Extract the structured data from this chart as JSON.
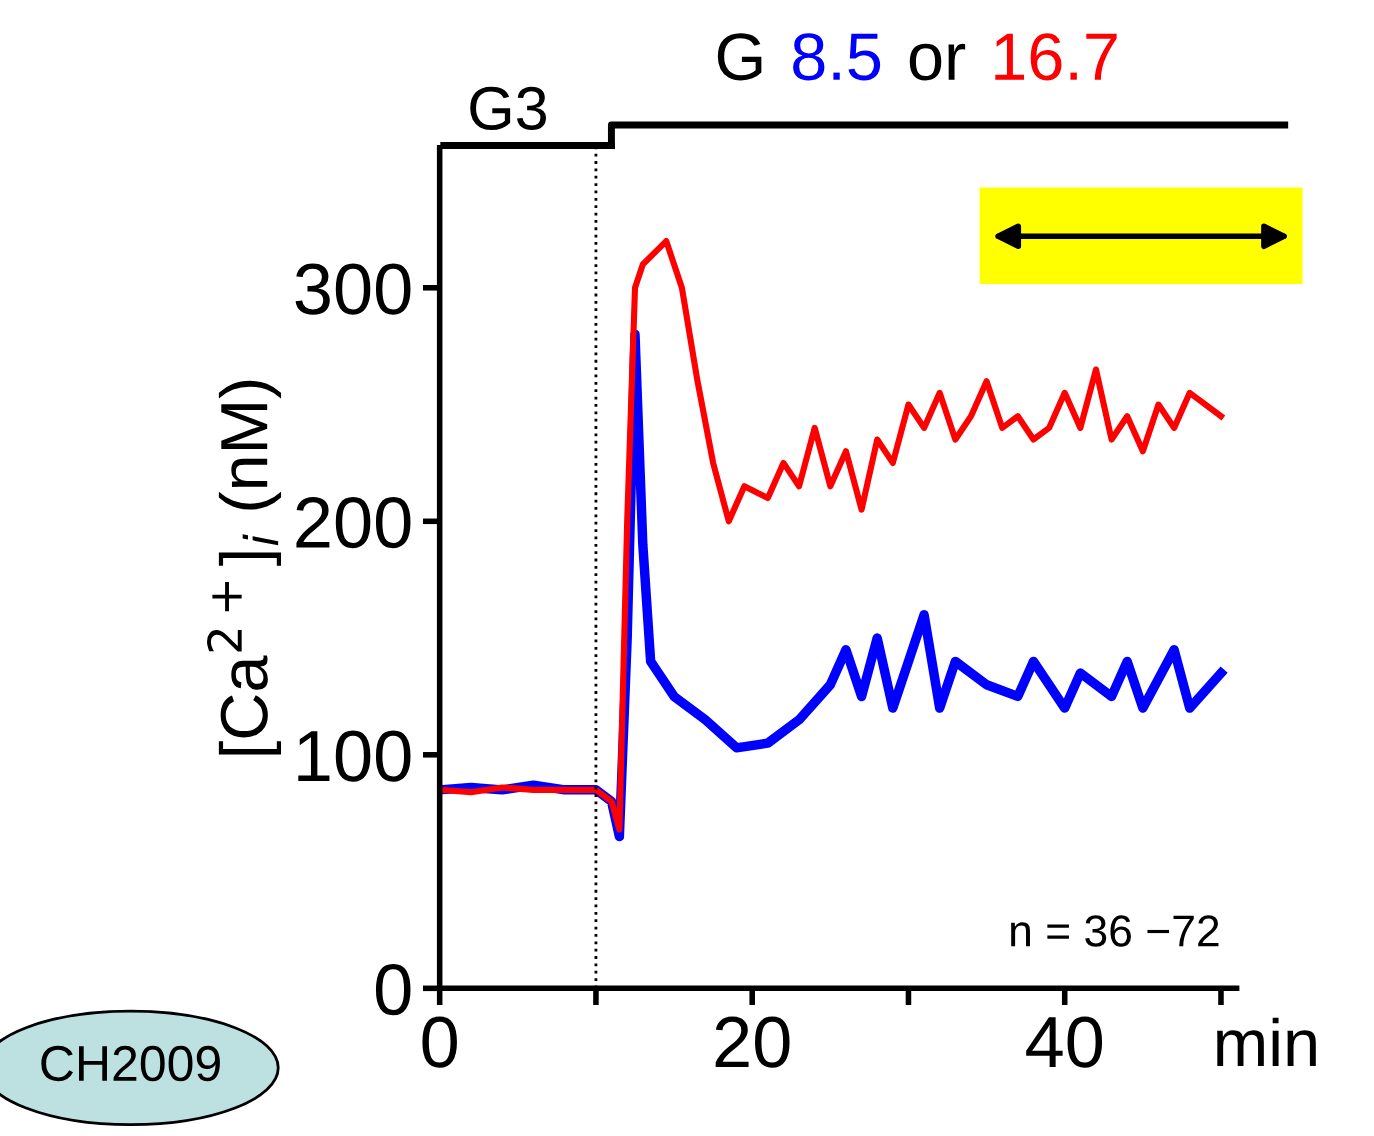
{
  "chart_data": {
    "type": "line",
    "title": "G 8.5 or 16.7",
    "ylabel": "[Ca$^{2+}$]$_{i}$ (nM)",
    "xlabel": "min",
    "annotations": [
      "G3",
      "n = 36 −72",
      "CH2009"
    ],
    "xlim": [
      0,
      51
    ],
    "ylim": [
      0,
      360
    ],
    "xticks": [
      0,
      {
        "value": 10,
        "label": null
      },
      20,
      {
        "value": 30,
        "label": null
      },
      40,
      {
        "value": 50,
        "label": null
      }
    ],
    "yticks": [
      0,
      100,
      200,
      300
    ],
    "ref_lines": [
      {
        "axis": "x",
        "value": 10,
        "label": null,
        "color": "#000000",
        "line_style": "dotted"
      }
    ],
    "grid": false,
    "legend": false,
    "marker": "none",
    "line_style": "solid",
    "series": [
      {
        "color": "#0000ff",
        "x": [
          0,
          2,
          4,
          6,
          8,
          10,
          11,
          11.5,
          12,
          12.5,
          13,
          13.5,
          15,
          17,
          19,
          21,
          23,
          25,
          26,
          27,
          28,
          29,
          30,
          31,
          32,
          33,
          35,
          37,
          38,
          40,
          41,
          43,
          44,
          45,
          47,
          48,
          50
        ],
        "values": [
          85,
          86,
          85,
          87,
          85,
          85,
          80,
          65,
          150,
          280,
          190,
          140,
          125,
          115,
          103,
          105,
          115,
          130,
          145,
          125,
          150,
          120,
          140,
          160,
          120,
          140,
          130,
          125,
          140,
          120,
          135,
          125,
          140,
          120,
          145,
          120,
          135
        ]
      },
      {
        "color": "#ff0000",
        "x": [
          0,
          2,
          4,
          6,
          8,
          10,
          11,
          11.5,
          12,
          12.5,
          13,
          14.5,
          15.5,
          16.5,
          17.5,
          18.5,
          19.5,
          21,
          22,
          23,
          24,
          25,
          26,
          27,
          28,
          29,
          30,
          31,
          32,
          33,
          34,
          35,
          36,
          37,
          38,
          39,
          40,
          41,
          42,
          43,
          44,
          45,
          46,
          47,
          48,
          50
        ],
        "values": [
          85,
          84,
          86,
          85,
          85,
          85,
          80,
          68,
          200,
          300,
          310,
          320,
          300,
          260,
          225,
          200,
          215,
          210,
          225,
          215,
          240,
          215,
          230,
          205,
          235,
          225,
          250,
          240,
          255,
          235,
          245,
          260,
          240,
          245,
          235,
          240,
          255,
          240,
          265,
          235,
          245,
          230,
          250,
          240,
          255,
          245
        ]
      }
    ]
  }
}
